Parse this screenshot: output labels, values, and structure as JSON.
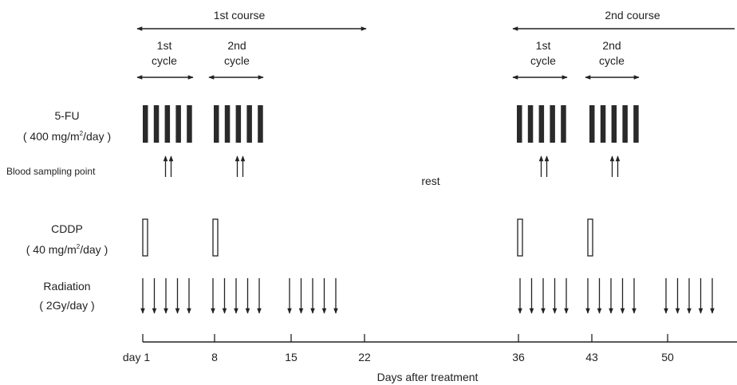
{
  "courses": [
    {
      "label": "1st course",
      "cycles": [
        {
          "label1": "1st",
          "label2": "cycle"
        },
        {
          "label1": "2nd",
          "label2": "cycle"
        }
      ]
    },
    {
      "label": "2nd course",
      "cycles": [
        {
          "label1": "1st",
          "label2": "cycle"
        },
        {
          "label1": "2nd",
          "label2": "cycle"
        }
      ]
    }
  ],
  "rows": {
    "fu": {
      "line1": "5-FU",
      "line2_pre": "( 400 mg/m",
      "line2_sup": "2",
      "line2_post": "/day  )"
    },
    "blood": {
      "label": "Blood sampling point"
    },
    "cddp": {
      "line1": "CDDP",
      "line2_pre": "( 40 mg/m",
      "line2_sup": "2",
      "line2_post": "/day  )"
    },
    "radiation": {
      "line1": "Radiation",
      "line2": "( 2Gy/day  )"
    }
  },
  "rest_label": "rest",
  "axis": {
    "title": "Days after treatment",
    "first_tick_prefix": "day",
    "ticks": [
      1,
      8,
      15,
      22,
      36,
      43,
      50
    ]
  },
  "schedule": {
    "fu_blocks": [
      [
        1,
        5
      ],
      [
        8,
        12
      ],
      [
        36,
        40
      ],
      [
        43,
        47
      ]
    ],
    "blood_days": [
      3,
      10,
      38,
      45
    ],
    "cddp_days": [
      1,
      8,
      36,
      43
    ],
    "radiation_blocks": [
      [
        1,
        5
      ],
      [
        8,
        12
      ],
      [
        15,
        19
      ],
      [
        36,
        40
      ],
      [
        43,
        47
      ],
      [
        50,
        54
      ]
    ],
    "course_spans": [
      [
        1,
        22
      ],
      [
        36,
        58
      ]
    ],
    "cycle_spans": [
      [
        1,
        5
      ],
      [
        8,
        12
      ],
      [
        36,
        40
      ],
      [
        43,
        47
      ]
    ]
  },
  "colors": {
    "ink": "#222222",
    "bar": "#2a2a2a"
  }
}
